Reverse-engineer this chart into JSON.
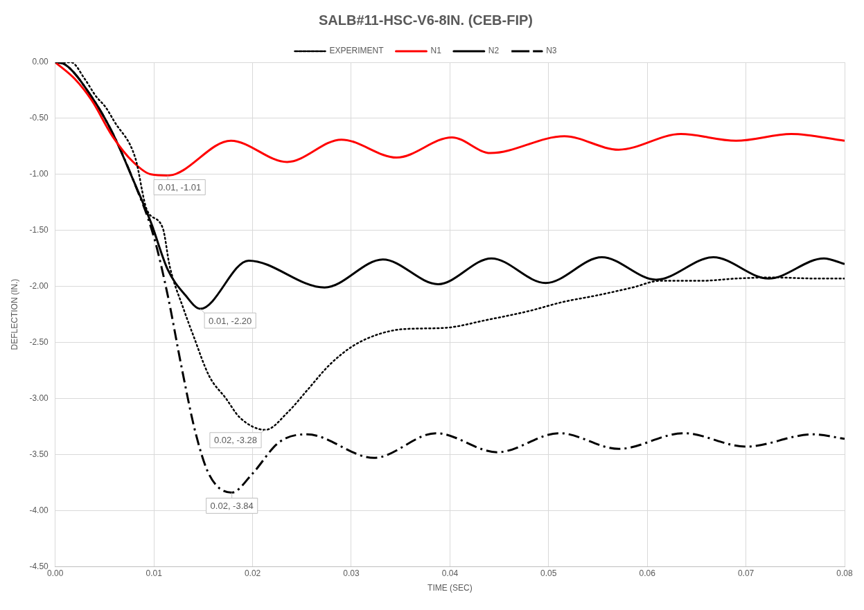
{
  "chart_data": {
    "type": "line",
    "title": "SALB#11-HSC-V6-8IN. (CEB-FIP)",
    "xlabel": "TIME (SEC)",
    "ylabel": "DEFLECTION (IN.)",
    "xlim": [
      0,
      0.08
    ],
    "xticks": [
      {
        "value": 0,
        "label": "0.00"
      },
      {
        "value": 0.01,
        "label": "0.01"
      },
      {
        "value": 0.02,
        "label": "0.02"
      },
      {
        "value": 0.03,
        "label": "0.03"
      },
      {
        "value": 0.04,
        "label": "0.04"
      },
      {
        "value": 0.05,
        "label": "0.05"
      },
      {
        "value": 0.06,
        "label": "0.06"
      },
      {
        "value": 0.07,
        "label": "0.07"
      },
      {
        "value": 0.08,
        "label": "0.08"
      }
    ],
    "ylim": [
      -4.5,
      0
    ],
    "yticks": [
      {
        "value": -4.5,
        "label": "-4.50"
      },
      {
        "value": -4,
        "label": "-4.00"
      },
      {
        "value": -3.5,
        "label": "-3.50"
      },
      {
        "value": -3,
        "label": "-3.00"
      },
      {
        "value": -2.5,
        "label": "-2.50"
      },
      {
        "value": -2,
        "label": "-2.00"
      },
      {
        "value": -1.5,
        "label": "-1.50"
      },
      {
        "value": -1,
        "label": "-1.00"
      },
      {
        "value": -0.5,
        "label": "-0.50"
      },
      {
        "value": 0,
        "label": "0.00"
      }
    ],
    "grid": true,
    "legend": "top",
    "marker": "none",
    "series": [
      {
        "name": "EXPERIMENT",
        "color": "#000000",
        "line_style": "dotted",
        "x": [
          0,
          0.0016,
          0.003,
          0.0041,
          0.0051,
          0.006,
          0.0081,
          0.0093,
          0.0109,
          0.0116,
          0.013,
          0.014,
          0.0156,
          0.0173,
          0.0187,
          0.0213,
          0.0236,
          0.0255,
          0.0278,
          0.0302,
          0.033,
          0.0355,
          0.0395,
          0.0437,
          0.048,
          0.0514,
          0.0549,
          0.0585,
          0.0613,
          0.0655,
          0.069,
          0.0725,
          0.0774,
          0.08
        ],
        "values": [
          0,
          0,
          -0.15,
          -0.3,
          -0.4,
          -0.53,
          -0.85,
          -1.32,
          -1.48,
          -1.82,
          -2.2,
          -2.44,
          -2.8,
          -3.0,
          -3.17,
          -3.28,
          -3.12,
          -2.93,
          -2.7,
          -2.53,
          -2.42,
          -2.38,
          -2.37,
          -2.3,
          -2.22,
          -2.14,
          -2.08,
          -2.01,
          -1.95,
          -1.95,
          -1.93,
          -1.92,
          -1.93,
          -1.93
        ]
      },
      {
        "name": "N1",
        "color": "#ff0000",
        "line_style": "solid",
        "x": [
          0,
          0.002,
          0.0037,
          0.0058,
          0.0079,
          0.0097,
          0.0114,
          0.0178,
          0.0235,
          0.029,
          0.0346,
          0.0402,
          0.0441,
          0.0516,
          0.0571,
          0.0634,
          0.069,
          0.0746,
          0.08
        ],
        "values": [
          0,
          -0.15,
          -0.34,
          -0.66,
          -0.89,
          -1.0,
          -1.01,
          -0.7,
          -0.89,
          -0.69,
          -0.85,
          -0.67,
          -0.81,
          -0.66,
          -0.78,
          -0.64,
          -0.7,
          -0.64,
          -0.7
        ]
      },
      {
        "name": "N2",
        "color": "#000000",
        "line_style": "solid",
        "x": [
          0,
          0.001,
          0.0037,
          0.0058,
          0.0079,
          0.0097,
          0.0114,
          0.0132,
          0.0147,
          0.0196,
          0.0273,
          0.0332,
          0.0388,
          0.0442,
          0.0497,
          0.0554,
          0.0609,
          0.0667,
          0.0723,
          0.0779,
          0.08
        ],
        "values": [
          0,
          -0.02,
          -0.31,
          -0.63,
          -1.05,
          -1.43,
          -1.85,
          -2.08,
          -2.2,
          -1.77,
          -2.01,
          -1.76,
          -1.98,
          -1.75,
          -1.97,
          -1.74,
          -1.94,
          -1.74,
          -1.93,
          -1.75,
          -1.8
        ]
      },
      {
        "name": "N3",
        "color": "#000000",
        "line_style": "dashed",
        "x": [
          0,
          0.001,
          0.0037,
          0.0058,
          0.0079,
          0.01,
          0.0114,
          0.0128,
          0.0142,
          0.0156,
          0.0179,
          0.0199,
          0.0227,
          0.0255,
          0.0323,
          0.0386,
          0.0448,
          0.0511,
          0.0571,
          0.0637,
          0.07,
          0.0768,
          0.08
        ],
        "values": [
          0,
          -0.02,
          -0.31,
          -0.63,
          -1.05,
          -1.56,
          -2.08,
          -2.72,
          -3.3,
          -3.68,
          -3.84,
          -3.68,
          -3.39,
          -3.32,
          -3.53,
          -3.31,
          -3.48,
          -3.31,
          -3.45,
          -3.31,
          -3.43,
          -3.32,
          -3.36
        ]
      }
    ],
    "annotations": [
      {
        "text": "0.01, -1.01",
        "x": 0.0114,
        "y": -1.01
      },
      {
        "text": "0.01, -2.20",
        "x": 0.0147,
        "y": -2.2
      },
      {
        "text": "0.02, -3.28",
        "x": 0.0213,
        "y": -3.28
      },
      {
        "text": "0.02, -3.84",
        "x": 0.0179,
        "y": -3.84
      }
    ]
  }
}
